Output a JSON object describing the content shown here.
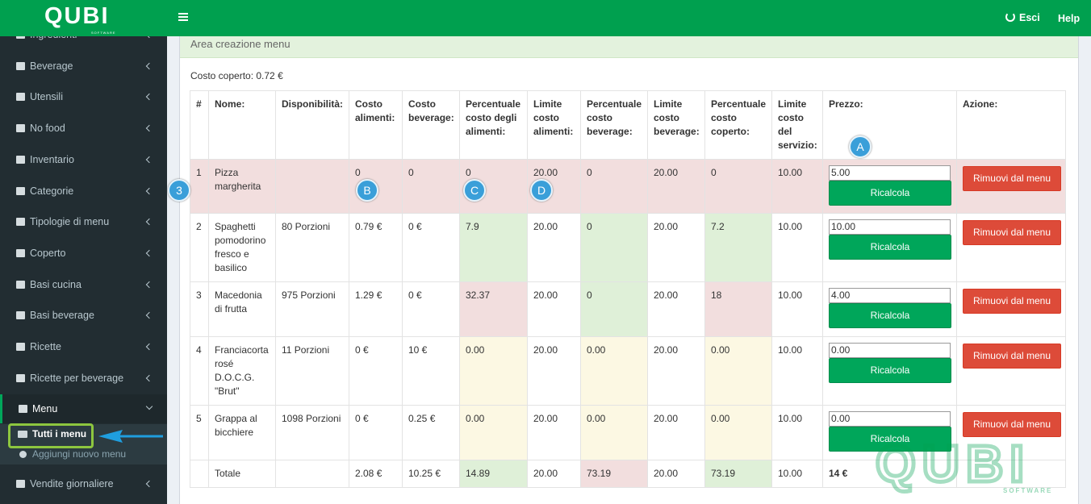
{
  "logo": {
    "name": "QUBI",
    "tagline": "SOFTWARE"
  },
  "topbar": {
    "logout": "Esci",
    "help": "Help"
  },
  "sidebar": [
    {
      "label": "Ingredienti"
    },
    {
      "label": "Beverage"
    },
    {
      "label": "Utensili"
    },
    {
      "label": "No food"
    },
    {
      "label": "Inventario"
    },
    {
      "label": "Categorie"
    },
    {
      "label": "Tipologie di menu"
    },
    {
      "label": "Coperto"
    },
    {
      "label": "Basi cucina"
    },
    {
      "label": "Basi beverage"
    },
    {
      "label": "Ricette"
    },
    {
      "label": "Ricette per beverage"
    },
    {
      "label": "Menu",
      "active": true,
      "children": [
        "Tutti i menu",
        "Aggiungi nuovo menu"
      ]
    },
    {
      "label": "Vendite giornaliere"
    }
  ],
  "panel": {
    "title": "Area creazione menu",
    "cover_cost": "Costo coperto: 0.72 €"
  },
  "buttons": {
    "recalc": "Ricalcola",
    "remove": "Rimuovi dal menu"
  },
  "table": {
    "headers": [
      "#",
      "Nome:",
      "Disponibilità:",
      "Costo alimenti:",
      "Costo beverage:",
      "Percentuale costo degli alimenti:",
      "Limite costo alimenti:",
      "Percentuale costo beverage:",
      "Limite costo beverage:",
      "Percentuale costo coperto:",
      "Limite costo del servizio:",
      "Prezzo:",
      "Azione:"
    ],
    "rows": [
      {
        "cells": [
          "1",
          "Pizza margherita",
          null,
          "0",
          "0",
          "0",
          "20.00",
          "0",
          "20.00",
          "0",
          "10.00",
          "5.00"
        ],
        "row_state": "danger"
      },
      {
        "cells": [
          "2",
          "Spaghetti pomodorino fresco e basilico",
          "80 Porzioni",
          "0.79 €",
          "0 €",
          "7.9",
          "20.00",
          "0",
          "20.00",
          "7.2",
          "10.00",
          "10.00"
        ],
        "states": [
          "success",
          "success",
          "success"
        ]
      },
      {
        "cells": [
          "3",
          "Macedonia di frutta",
          "975 Porzioni",
          "1.29 €",
          "0 €",
          "32.37",
          "20.00",
          "0",
          "20.00",
          "18",
          "10.00",
          "4.00"
        ],
        "states": [
          "danger",
          "success",
          "danger"
        ]
      },
      {
        "cells": [
          "4",
          "Franciacorta rosé D.O.C.G. \"Brut\"",
          "11 Porzioni",
          "0 €",
          "10 €",
          "0.00",
          "20.00",
          "0.00",
          "20.00",
          "0.00",
          "10.00",
          "0.00"
        ],
        "states": [
          "warning",
          "warning",
          "warning"
        ]
      },
      {
        "cells": [
          "5",
          "Grappa al bicchiere",
          "1098 Porzioni",
          "0 €",
          "0.25 €",
          "0.00",
          "20.00",
          "0.00",
          "20.00",
          "0.00",
          "10.00",
          "0.00"
        ],
        "states": [
          "warning",
          "warning",
          "warning"
        ]
      }
    ],
    "totals": {
      "cells": [
        "Totale",
        null,
        "2.08 €",
        "10.25 €",
        "14.89",
        "20.00",
        "73.19",
        "20.00",
        "73.19",
        "10.00",
        "14 €"
      ],
      "states": [
        "success",
        "danger",
        "success"
      ]
    }
  },
  "markers": [
    "A",
    "B",
    "C",
    "D",
    "3"
  ]
}
